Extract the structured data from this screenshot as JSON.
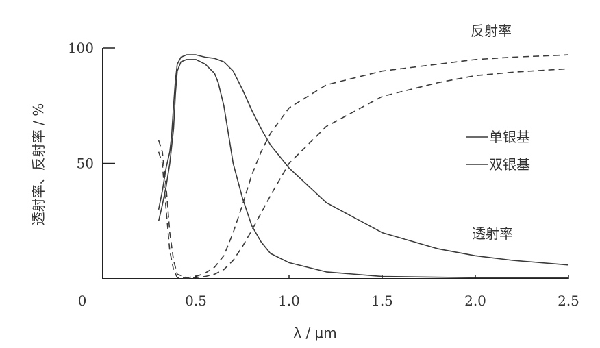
{
  "chart_data": {
    "type": "line",
    "xlabel": "λ / μm",
    "ylabel": "透射率、反射率 / %",
    "xlim": [
      0,
      2.5
    ],
    "ylim": [
      0,
      100
    ],
    "x_ticks": [
      "0",
      "0.5",
      "1.0",
      "1.5",
      "2.0",
      "2.5"
    ],
    "y_ticks": [
      "100",
      "50"
    ],
    "grid": false,
    "legend_position": "right",
    "legend": [
      {
        "label": "单银基",
        "style": "solid"
      },
      {
        "label": "双银基",
        "style": "solid"
      }
    ],
    "annotations": [
      "反射率",
      "透射率"
    ],
    "series": [
      {
        "name": "单银基",
        "style": "solid",
        "points": [
          [
            0.3,
            30
          ],
          [
            0.32,
            38
          ],
          [
            0.34,
            48
          ],
          [
            0.36,
            55
          ],
          [
            0.37,
            62
          ],
          [
            0.38,
            75
          ],
          [
            0.39,
            86
          ],
          [
            0.4,
            93
          ],
          [
            0.42,
            96
          ],
          [
            0.45,
            97
          ],
          [
            0.5,
            97
          ],
          [
            0.55,
            96
          ],
          [
            0.6,
            95.5
          ],
          [
            0.65,
            94
          ],
          [
            0.7,
            90
          ],
          [
            0.75,
            82
          ],
          [
            0.8,
            73
          ],
          [
            0.85,
            65
          ],
          [
            0.9,
            58
          ],
          [
            1.0,
            48
          ],
          [
            1.2,
            33
          ],
          [
            1.5,
            20
          ],
          [
            1.8,
            13
          ],
          [
            2.0,
            10
          ],
          [
            2.2,
            8
          ],
          [
            2.5,
            6
          ]
        ]
      },
      {
        "name": "双银基",
        "style": "solid",
        "points": [
          [
            0.3,
            25
          ],
          [
            0.32,
            32
          ],
          [
            0.34,
            40
          ],
          [
            0.36,
            50
          ],
          [
            0.38,
            65
          ],
          [
            0.39,
            80
          ],
          [
            0.4,
            90
          ],
          [
            0.42,
            94
          ],
          [
            0.45,
            95
          ],
          [
            0.5,
            95
          ],
          [
            0.55,
            93
          ],
          [
            0.6,
            89
          ],
          [
            0.62,
            85
          ],
          [
            0.65,
            75
          ],
          [
            0.68,
            60
          ],
          [
            0.7,
            50
          ],
          [
            0.75,
            35
          ],
          [
            0.8,
            23
          ],
          [
            0.85,
            16
          ],
          [
            0.9,
            11
          ],
          [
            1.0,
            7
          ],
          [
            1.2,
            3
          ],
          [
            1.5,
            1
          ],
          [
            2.0,
            0.5
          ],
          [
            2.5,
            0.5
          ]
        ]
      },
      {
        "name": "单银基 反射率",
        "style": "dashed",
        "points": [
          [
            0.3,
            60
          ],
          [
            0.32,
            55
          ],
          [
            0.34,
            40
          ],
          [
            0.36,
            20
          ],
          [
            0.38,
            8
          ],
          [
            0.4,
            2
          ],
          [
            0.45,
            0.5
          ],
          [
            0.5,
            1
          ],
          [
            0.55,
            2.5
          ],
          [
            0.6,
            5
          ],
          [
            0.65,
            10
          ],
          [
            0.7,
            20
          ],
          [
            0.75,
            32
          ],
          [
            0.8,
            45
          ],
          [
            0.85,
            55
          ],
          [
            0.9,
            63
          ],
          [
            1.0,
            74
          ],
          [
            1.2,
            84
          ],
          [
            1.5,
            90
          ],
          [
            1.8,
            93
          ],
          [
            2.0,
            95
          ],
          [
            2.2,
            96
          ],
          [
            2.5,
            97
          ]
        ]
      },
      {
        "name": "双银基 反射率",
        "style": "dashed",
        "points": [
          [
            0.3,
            55
          ],
          [
            0.32,
            50
          ],
          [
            0.34,
            30
          ],
          [
            0.36,
            12
          ],
          [
            0.38,
            4
          ],
          [
            0.4,
            0.5
          ],
          [
            0.45,
            0.3
          ],
          [
            0.5,
            0.5
          ],
          [
            0.55,
            1
          ],
          [
            0.6,
            2
          ],
          [
            0.65,
            4
          ],
          [
            0.7,
            8
          ],
          [
            0.75,
            14
          ],
          [
            0.8,
            21
          ],
          [
            0.9,
            36
          ],
          [
            1.0,
            50
          ],
          [
            1.2,
            66
          ],
          [
            1.5,
            79
          ],
          [
            1.8,
            85
          ],
          [
            2.0,
            88
          ],
          [
            2.2,
            89.5
          ],
          [
            2.5,
            91
          ]
        ]
      }
    ]
  },
  "colors": {
    "line": "#3a3a3a",
    "axis": "#222222",
    "text": "#333333",
    "background": "#ffffff"
  }
}
